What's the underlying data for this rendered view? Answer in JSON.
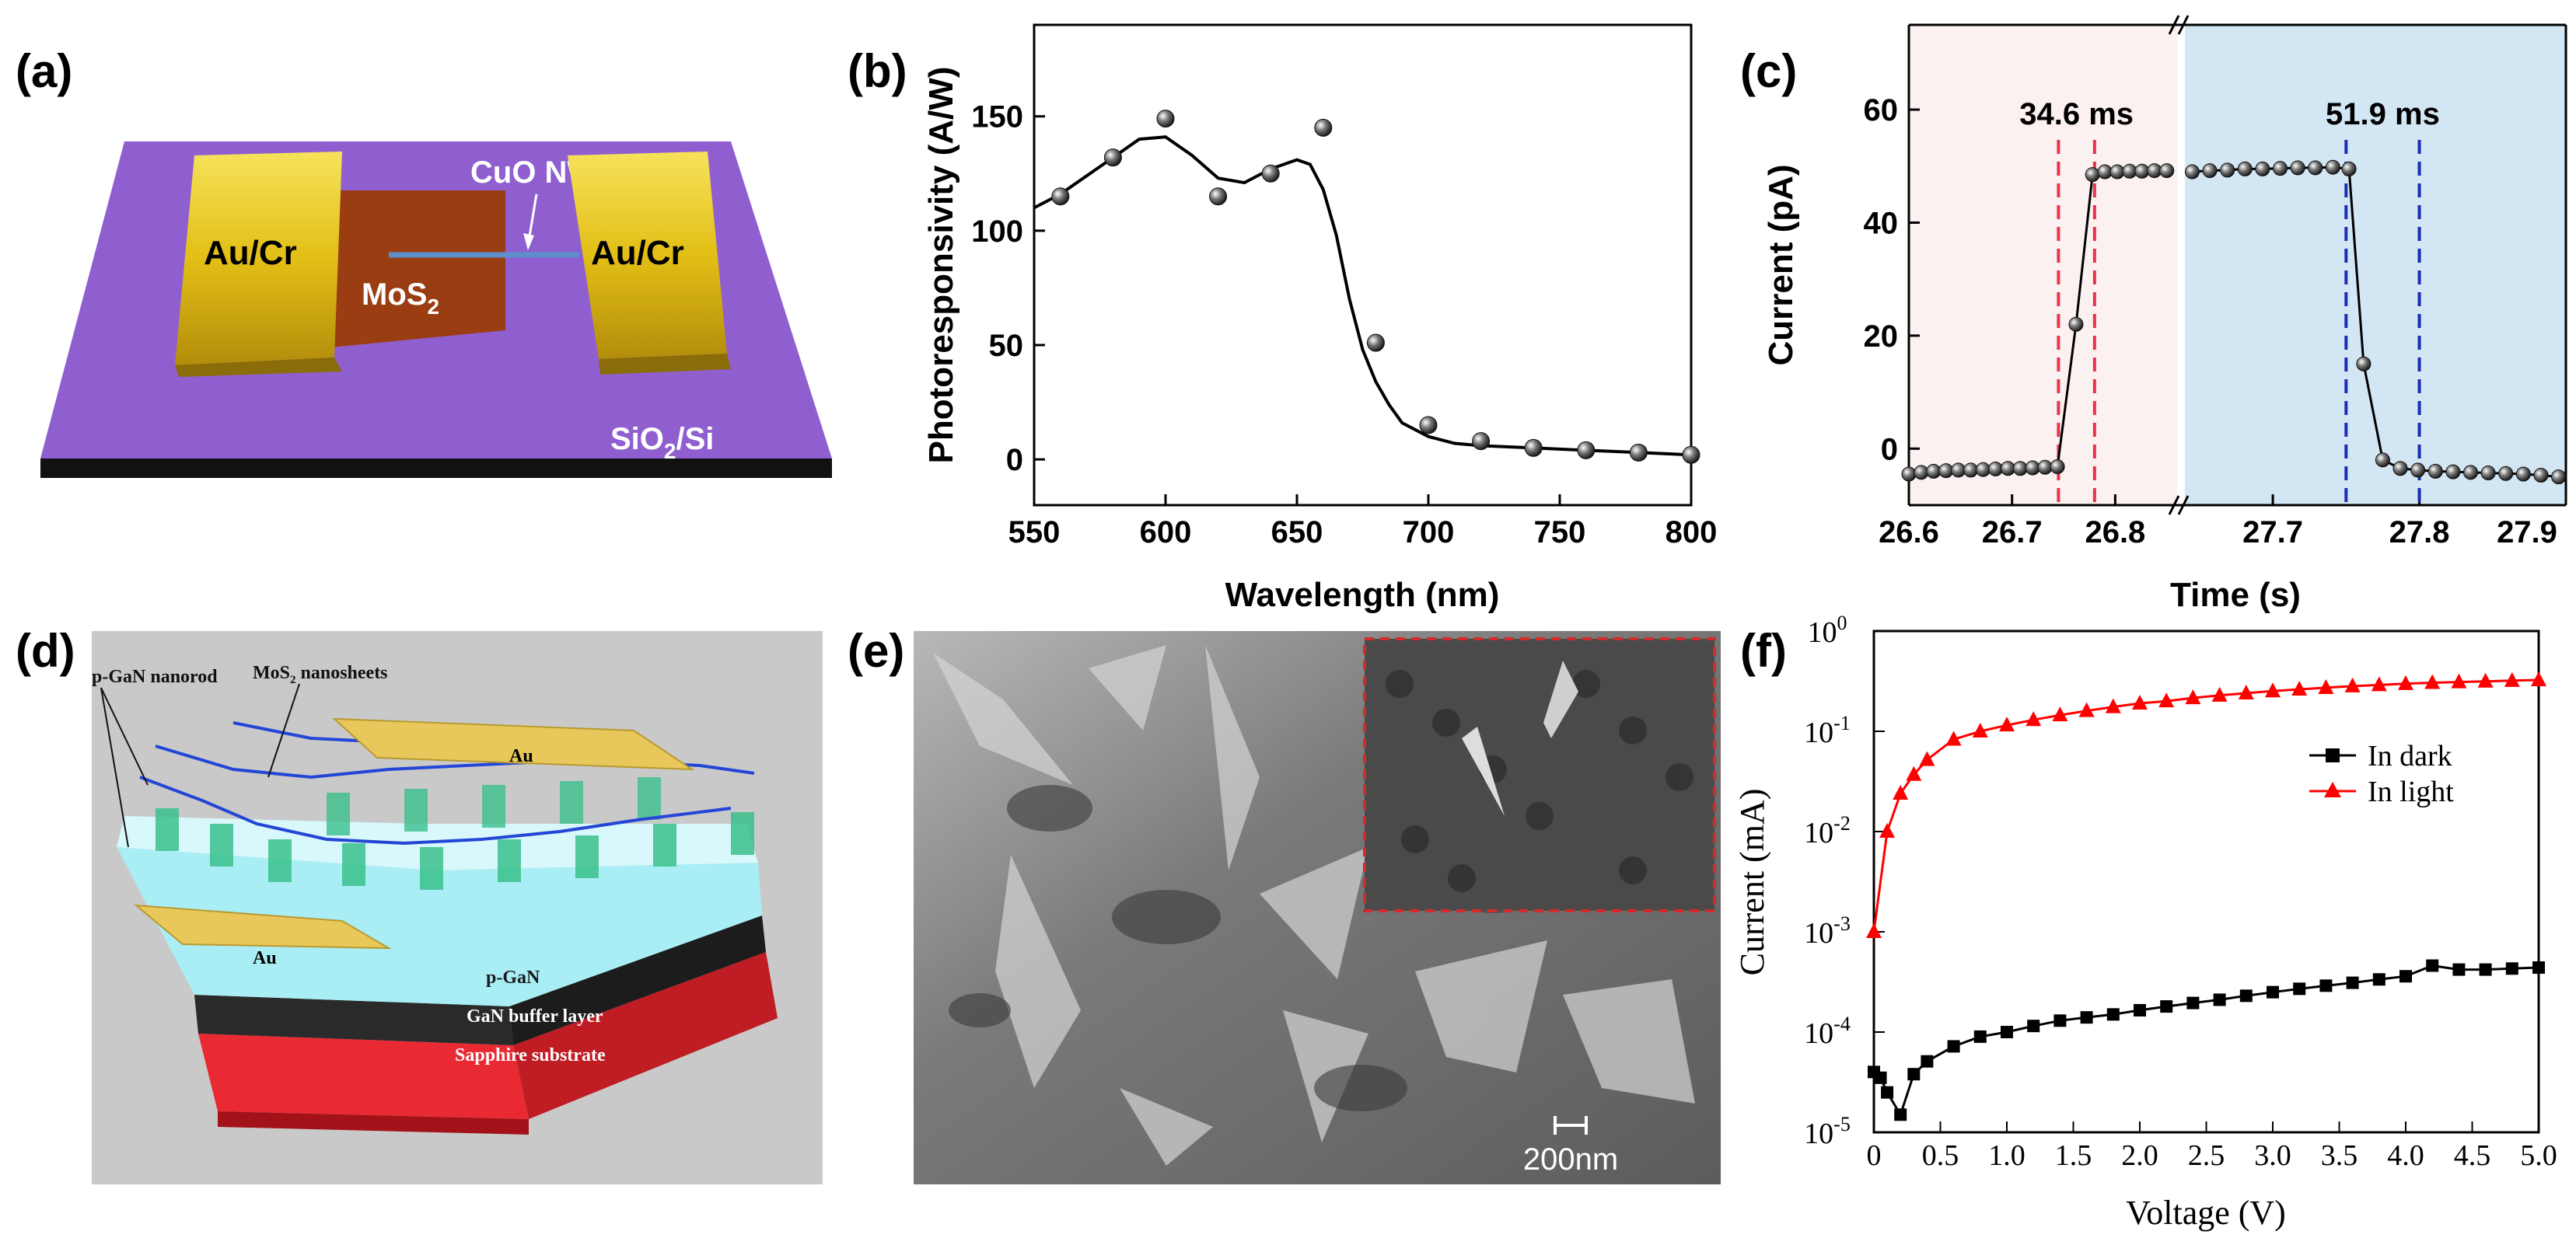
{
  "panels": {
    "a": {
      "label": "(a)",
      "electrode_left": "Au/Cr",
      "electrode_right": "Au/Cr",
      "flake": "MoS",
      "flake_sub": "2",
      "wire": "CuO NW",
      "substrate": "SiO",
      "substrate_sub": "2",
      "substrate_tail": "/Si",
      "colors": {
        "substrate": "#8f5fcf",
        "gold": "#e6c21a",
        "flake": "#9b3d12",
        "base": "#111111"
      }
    },
    "d": {
      "label": "(d)",
      "nanorod": "p-GaN nanorod",
      "nanosheets": "MoS",
      "nanosheets_sub": "2",
      "nanosheets_tail": " nanosheets",
      "au_top": "Au",
      "au_left": "Au",
      "pgan": "p-GaN",
      "buffer": "GaN buffer layer",
      "sapphire": "Sapphire substrate"
    },
    "e": {
      "label": "(e)",
      "scale_bar": "200nm"
    }
  },
  "chart_data": [
    {
      "panel_label": "(b)",
      "type": "scatter",
      "xlabel": "Wavelength (nm)",
      "ylabel": "Photoresponsivity (A/W)",
      "xlim": [
        550,
        800
      ],
      "ylim": [
        -20,
        190
      ],
      "xticks": [
        550,
        600,
        650,
        700,
        750,
        800
      ],
      "yticks": [
        0,
        50,
        100,
        150
      ],
      "series": [
        {
          "x": [
            560,
            580,
            600,
            620,
            640,
            660,
            680,
            700,
            720,
            740,
            760,
            780,
            800
          ],
          "y": [
            115,
            132,
            149,
            115,
            125,
            145,
            51,
            15,
            8,
            5,
            4,
            3,
            2
          ]
        }
      ],
      "fit_curve": {
        "x": [
          550,
          560,
          575,
          590,
          600,
          610,
          620,
          630,
          640,
          650,
          655,
          660,
          665,
          670,
          675,
          680,
          685,
          690,
          700,
          710,
          720,
          740,
          760,
          780,
          800
        ],
        "y": [
          110,
          116,
          128,
          140,
          141,
          133,
          123,
          121,
          127,
          131,
          129,
          118,
          98,
          70,
          48,
          34,
          24,
          16,
          10,
          7,
          6,
          5,
          4,
          3,
          2
        ]
      }
    },
    {
      "panel_label": "(c)",
      "type": "line",
      "xlabel": "Time (s)",
      "ylabel": "Current (pA)",
      "ylim": [
        -10,
        75
      ],
      "yticks": [
        0,
        20,
        40,
        60
      ],
      "broken_axis": true,
      "segments": [
        {
          "xlim": [
            26.6,
            26.86
          ],
          "xticks": [
            26.6,
            26.7,
            26.8
          ],
          "tick_labels": [
            "26.6",
            "26.7",
            "26.8"
          ],
          "background": "#fcf1f1"
        },
        {
          "xlim": [
            27.64,
            27.9
          ],
          "xticks": [
            27.7,
            27.8,
            27.9
          ],
          "tick_labels": [
            "27.7",
            "27.8",
            "27.9"
          ],
          "background": "#d2e6f3"
        }
      ],
      "series": [
        {
          "x": [
            26.6,
            26.612,
            26.624,
            26.636,
            26.648,
            26.66,
            26.672,
            26.684,
            26.696,
            26.708,
            26.72,
            26.732,
            26.744,
            26.762,
            26.778,
            26.79,
            26.802,
            26.814,
            26.826,
            26.838,
            26.85
          ],
          "y": [
            -4.5,
            -4.2,
            -4.0,
            -3.9,
            -3.8,
            -3.8,
            -3.7,
            -3.6,
            -3.5,
            -3.5,
            -3.4,
            -3.3,
            -3.2,
            22,
            48.5,
            49,
            49,
            49.1,
            49.1,
            49.2,
            49.2
          ]
        },
        {
          "x": [
            27.645,
            27.657,
            27.669,
            27.681,
            27.693,
            27.705,
            27.717,
            27.729,
            27.741,
            27.752,
            27.762,
            27.775,
            27.787,
            27.799,
            27.811,
            27.823,
            27.835,
            27.847,
            27.859,
            27.871,
            27.883,
            27.895
          ],
          "y": [
            49,
            49.2,
            49.3,
            49.5,
            49.5,
            49.6,
            49.7,
            49.7,
            49.8,
            49.5,
            15,
            -2,
            -3.5,
            -3.8,
            -4,
            -4.1,
            -4.2,
            -4.3,
            -4.4,
            -4.5,
            -4.7,
            -5
          ]
        }
      ],
      "annotations": [
        {
          "text": "34.6 ms",
          "color": "#e8344b",
          "markers": [
            26.745,
            26.78
          ]
        },
        {
          "text": "51.9 ms",
          "color": "#1a2db5",
          "markers": [
            27.75,
            27.8
          ]
        }
      ]
    },
    {
      "panel_label": "(f)",
      "type": "line",
      "xlabel": "Voltage (V)",
      "ylabel": "Current (mA)",
      "xlim": [
        0,
        5
      ],
      "ylim_log10": [
        -5,
        0
      ],
      "log_scale_y": true,
      "xticks": [
        "0",
        "0.5",
        "1.0",
        "1.5",
        "2.0",
        "2.5",
        "3.0",
        "3.5",
        "4.0",
        "4.5",
        "5.0"
      ],
      "yticks": [
        {
          "base": "10",
          "exp": "0"
        },
        {
          "base": "10",
          "exp": "-1"
        },
        {
          "base": "10",
          "exp": "-2"
        },
        {
          "base": "10",
          "exp": "-3"
        },
        {
          "base": "10",
          "exp": "-4"
        },
        {
          "base": "10",
          "exp": "-5"
        }
      ],
      "legend_position": "top-right",
      "series": [
        {
          "name": "In dark",
          "color": "#000000",
          "marker": "square",
          "x": [
            0,
            0.05,
            0.1,
            0.2,
            0.3,
            0.4,
            0.6,
            0.8,
            1.0,
            1.2,
            1.4,
            1.6,
            1.8,
            2.0,
            2.2,
            2.4,
            2.6,
            2.8,
            3.0,
            3.2,
            3.4,
            3.6,
            3.8,
            4.0,
            4.2,
            4.4,
            4.6,
            4.8,
            5.0
          ],
          "y": [
            4e-05,
            3.5e-05,
            2.5e-05,
            1.5e-05,
            3.8e-05,
            5.1e-05,
            7.2e-05,
            9e-05,
            0.0001,
            0.000115,
            0.00013,
            0.00014,
            0.00015,
            0.000165,
            0.00018,
            0.000195,
            0.00021,
            0.00023,
            0.00025,
            0.00027,
            0.00029,
            0.00031,
            0.000335,
            0.00036,
            0.00046,
            0.00042,
            0.00042,
            0.00043,
            0.00044
          ]
        },
        {
          "name": "In light",
          "color": "#ff0000",
          "marker": "triangle",
          "x": [
            0,
            0.1,
            0.2,
            0.3,
            0.4,
            0.6,
            0.8,
            1.0,
            1.2,
            1.4,
            1.6,
            1.8,
            2.0,
            2.2,
            2.4,
            2.6,
            2.8,
            3.0,
            3.2,
            3.4,
            3.6,
            3.8,
            4.0,
            4.2,
            4.4,
            4.6,
            4.8,
            5.0
          ],
          "y": [
            0.001,
            0.01,
            0.024,
            0.037,
            0.052,
            0.083,
            0.1,
            0.115,
            0.13,
            0.145,
            0.16,
            0.175,
            0.19,
            0.2,
            0.215,
            0.228,
            0.24,
            0.252,
            0.262,
            0.272,
            0.282,
            0.29,
            0.298,
            0.305,
            0.31,
            0.315,
            0.32,
            0.325
          ]
        }
      ]
    }
  ]
}
